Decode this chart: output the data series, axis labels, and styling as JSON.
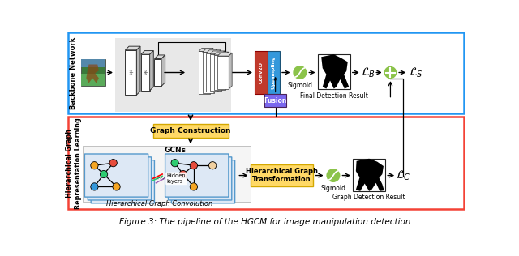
{
  "title": "Figure 3: The pipeline of the HGCM for image manipulation detection.",
  "title_fontsize": 7.5,
  "bg_color": "#ffffff",
  "top_box_ec": "#2196F3",
  "bottom_box_ec": "#F44336",
  "backbone_label": "Backbone Network",
  "hgrl_label": "Hierarchical Graph\nRepresentation Learning",
  "graph_construction_label": "Graph Construction",
  "gcns_label": "GCNs",
  "hidden_layers_label": "Hidden\nlayers",
  "hier_graph_conv_label": "Hierarchical Graph Convolution",
  "hier_graph_trans_label": "Hierarchical Graph\nTransformation",
  "conv2d_label": "Conv2D",
  "upsampling_label": "Upsampling",
  "fusion_label": "Fusion",
  "sigmoid_label": "Sigmoid",
  "final_detection_label": "Final Detection Result",
  "graph_detection_label": "Graph Detection Result",
  "lb_label": "$\\mathcal{L}_B$",
  "lc_label": "$\\mathcal{L}_C$",
  "ls_label": "$\\mathcal{L}_S$",
  "green_color": "#8BC34A",
  "yellow_fc": "#FFD966",
  "yellow_ec": "#d4a800",
  "conv2d_fc": "#C0392B",
  "upsampling_fc": "#3498DB",
  "fusion_fc": "#7B68EE",
  "gray_bg": "#e8e8e8",
  "gcn_bg": "#dde8f5",
  "gcn_ec": "#5599cc"
}
